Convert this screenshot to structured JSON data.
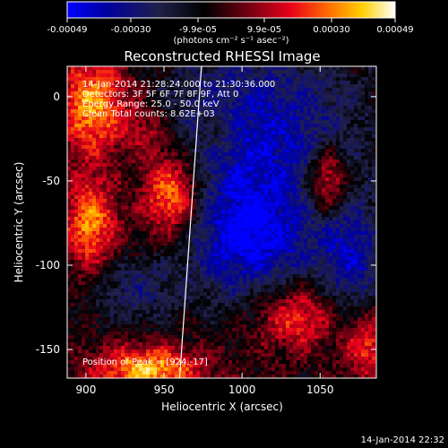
{
  "chart_data": {
    "type": "heatmap",
    "title": "Reconstructed RHESSI Image",
    "xlabel": "Heliocentric X (arcsec)",
    "ylabel": "Heliocentric Y (arcsec)",
    "xlim": [
      888,
      1086
    ],
    "ylim": [
      -167,
      18
    ],
    "x_ticks": [
      900,
      950,
      1000,
      1050
    ],
    "y_ticks": [
      0,
      -50,
      -100,
      -150
    ],
    "colorbar": {
      "min": -0.00049,
      "max": 0.00049,
      "ticks": [
        "-0.00049",
        "-0.00030",
        "-9.9e-05",
        "9.9e-05",
        "0.00030",
        "0.00049"
      ],
      "tick_values": [
        -0.00049,
        -0.0003,
        -9.9e-05,
        9.9e-05,
        0.0003,
        0.00049
      ],
      "units": "(photons cm⁻² s⁻¹ asec⁻²)",
      "colors": [
        "#0000ff",
        "#00008c",
        "#1a1a4a",
        "#000000",
        "#7a0010",
        "#e8001a",
        "#ff6a00",
        "#ffc000",
        "#ffff9a",
        "#ffffff"
      ]
    },
    "annotations": {
      "time": "14-Jan-2014 21:28:24.000 to 21:30:36.000",
      "detectors": "Detectors: 3F 5F 6F 7F 8F 9F, Att 0",
      "energy": "Energy Range: 25.0 - 50.0 keV",
      "method": "Clean     Total counts: 8.62E+03",
      "peak": "Position of Peak = [924,-17]"
    },
    "limb_line": [
      [
        974,
        18
      ],
      [
        960,
        -167
      ]
    ],
    "sources": [
      {
        "x": 905,
        "y": -5,
        "sigx": 16,
        "sigy": 20,
        "amp": 0.00042
      },
      {
        "x": 955,
        "y": -58,
        "sigx": 14,
        "sigy": 18,
        "amp": 0.00046
      },
      {
        "x": 903,
        "y": -75,
        "sigx": 12,
        "sigy": 20,
        "amp": 0.00038
      },
      {
        "x": 940,
        "y": -20,
        "sigx": 12,
        "sigy": 12,
        "amp": 0.00018
      },
      {
        "x": 1055,
        "y": -50,
        "sigx": 9,
        "sigy": 14,
        "amp": 0.0004
      },
      {
        "x": 1035,
        "y": -130,
        "sigx": 18,
        "sigy": 14,
        "amp": 0.0003
      },
      {
        "x": 1080,
        "y": -148,
        "sigx": 10,
        "sigy": 14,
        "amp": 0.00028
      },
      {
        "x": 940,
        "y": -162,
        "sigx": 24,
        "sigy": 10,
        "amp": 0.00042
      },
      {
        "x": 985,
        "y": -20,
        "sigx": 10,
        "sigy": 10,
        "amp": 0.00016
      }
    ],
    "sinks": [
      {
        "x": 1010,
        "y": -20,
        "sigx": 45,
        "sigy": 35,
        "amp": -0.00035
      },
      {
        "x": 1005,
        "y": -85,
        "sigx": 30,
        "sigy": 25,
        "amp": -0.0004
      },
      {
        "x": 930,
        "y": -115,
        "sigx": 20,
        "sigy": 14,
        "amp": -0.0002
      },
      {
        "x": 1070,
        "y": -95,
        "sigx": 14,
        "sigy": 25,
        "amp": -0.0003
      }
    ],
    "footer_timestamp": "14-Jan-2014 22:32"
  }
}
